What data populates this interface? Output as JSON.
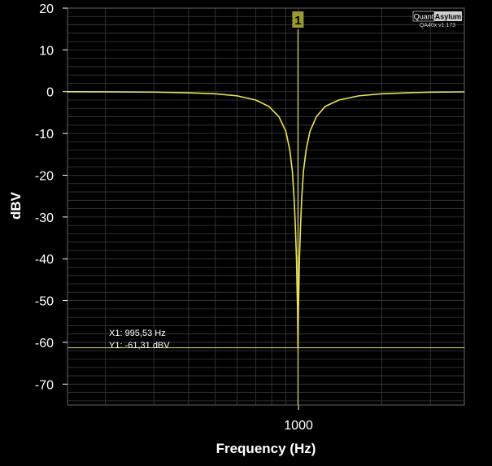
{
  "branding": {
    "logo_left": "Quant",
    "logo_right": "Asylum",
    "version": "QA40x v1.173"
  },
  "cursor": {
    "marker_label": "1",
    "x_readout": "X1: 995,53 Hz",
    "y_readout": "Y1: -61,31 dBV"
  },
  "colors": {
    "trace": "#e8e84a",
    "cursor": "#d8d860",
    "marker_fill": "#9a9a2a",
    "grid": "#3a3a3a",
    "plot_border": "#666666",
    "background": "#000000"
  },
  "chart_data": {
    "type": "line",
    "title": "",
    "xlabel": "Frequency (Hz)",
    "ylabel": "dBV",
    "x_scale": "log",
    "xlim": [
      146,
      3980
    ],
    "ylim": [
      -75,
      20
    ],
    "y_ticks": [
      20,
      10,
      0,
      -10,
      -20,
      -30,
      -40,
      -50,
      -60,
      -70
    ],
    "x_tick_labels": [
      {
        "value": 1000,
        "label": "1000"
      }
    ],
    "grid": true,
    "series": [
      {
        "points": [
          [
            146,
            -0.02
          ],
          [
            200,
            -0.04
          ],
          [
            300,
            -0.1
          ],
          [
            400,
            -0.25
          ],
          [
            500,
            -0.5
          ],
          [
            600,
            -1.0
          ],
          [
            700,
            -2.0
          ],
          [
            780,
            -3.5
          ],
          [
            850,
            -6.0
          ],
          [
            900,
            -9.5
          ],
          [
            930,
            -14
          ],
          [
            950,
            -19
          ],
          [
            965,
            -26
          ],
          [
            975,
            -33
          ],
          [
            983,
            -40
          ],
          [
            988,
            -47
          ],
          [
            992,
            -52
          ],
          [
            995.53,
            -61.31
          ],
          [
            999,
            -52
          ],
          [
            1003,
            -47
          ],
          [
            1008,
            -40
          ],
          [
            1016,
            -33
          ],
          [
            1026,
            -26
          ],
          [
            1042,
            -19
          ],
          [
            1065,
            -14
          ],
          [
            1100,
            -9.5
          ],
          [
            1160,
            -6.0
          ],
          [
            1250,
            -3.5
          ],
          [
            1400,
            -2.0
          ],
          [
            1650,
            -1.0
          ],
          [
            2000,
            -0.5
          ],
          [
            2500,
            -0.25
          ],
          [
            3000,
            -0.12
          ],
          [
            3980,
            -0.05
          ]
        ]
      }
    ],
    "cursor_x": 995.53,
    "cursor_y": -61.31
  }
}
